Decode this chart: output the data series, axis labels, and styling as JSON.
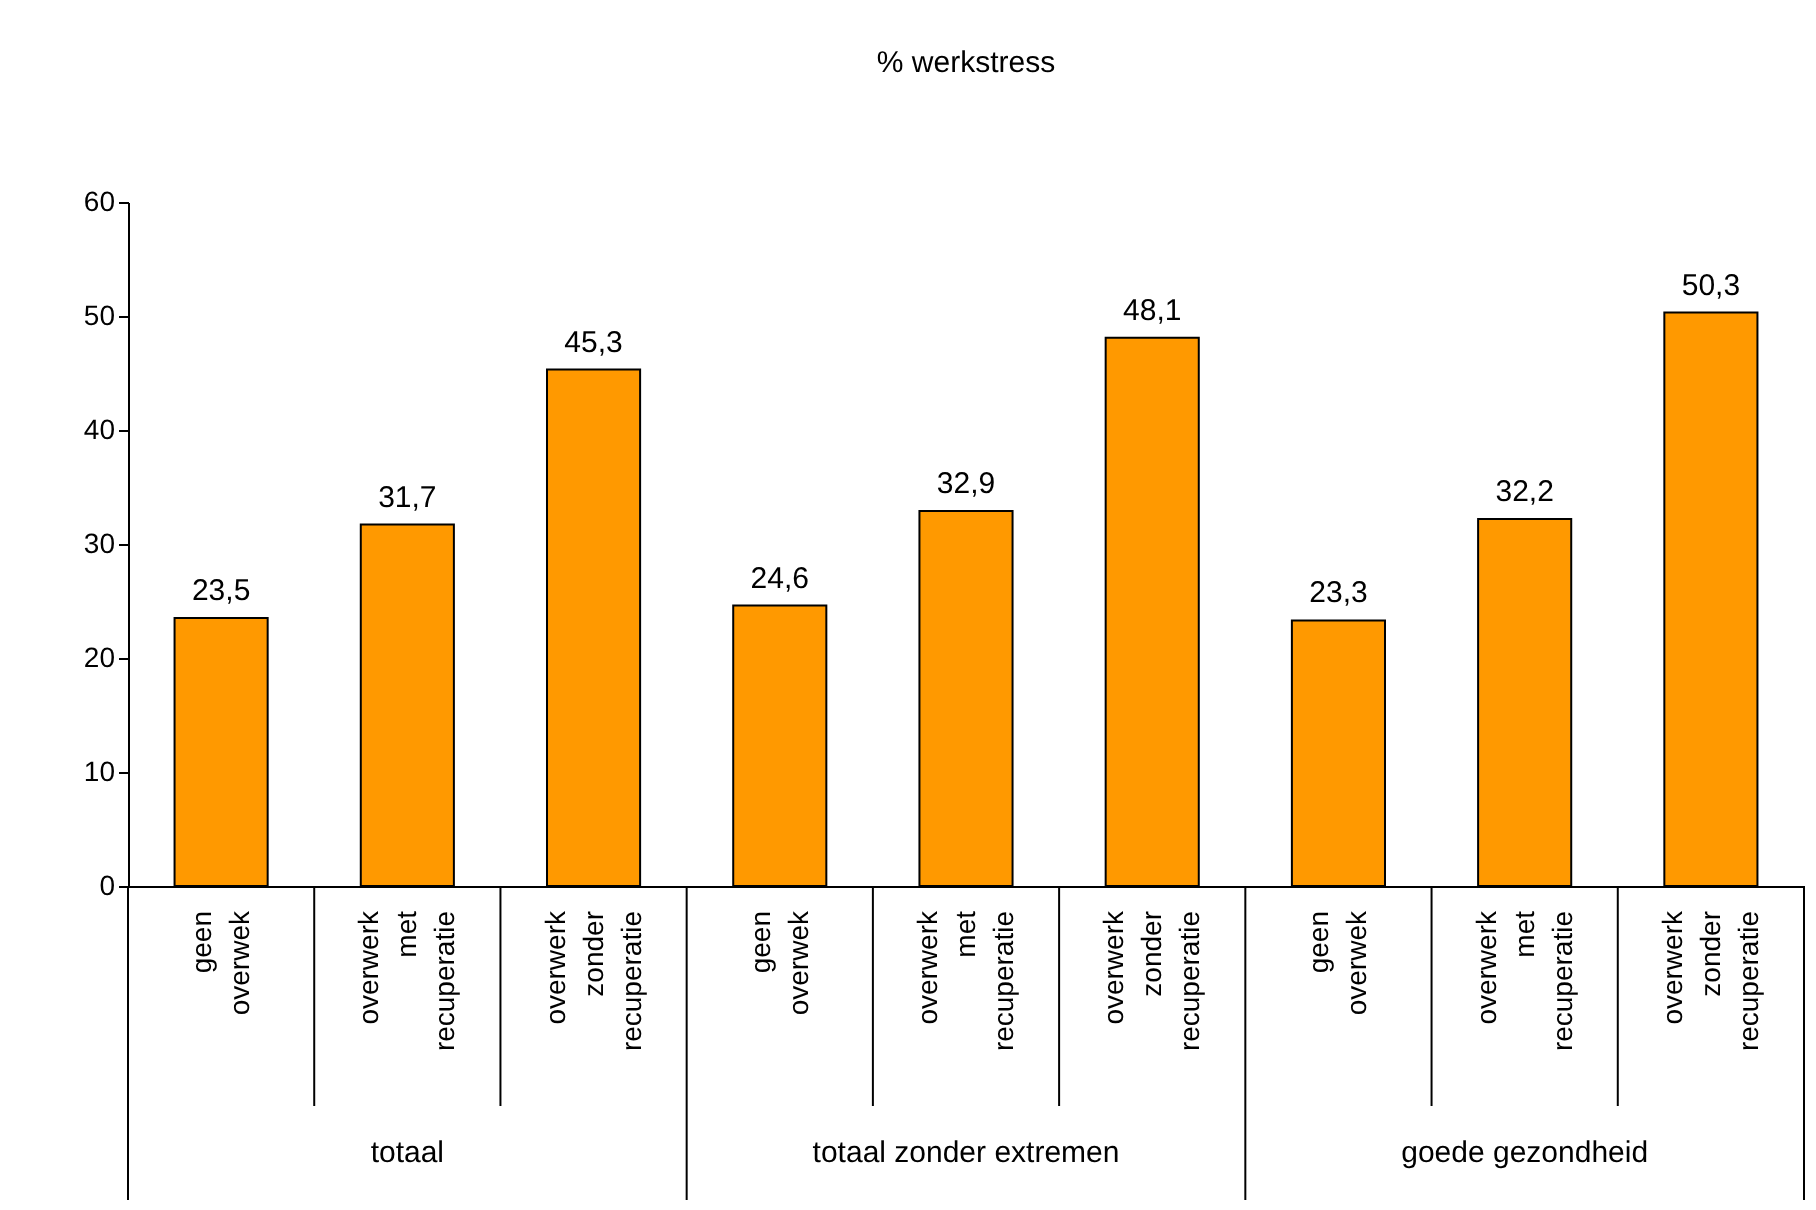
{
  "chart_data": {
    "type": "bar",
    "title": "% werkstress",
    "categories": [
      "geen overwek",
      "overwerk met recuperatie",
      "overwerk zonder recuperatie",
      "geen overwek",
      "overwerk met recuperatie",
      "overwerk zonder recuperatie",
      "geen overwek",
      "overwerk met recuperatie",
      "overwerk zonder recuperatie"
    ],
    "values": [
      23.5,
      31.7,
      45.3,
      24.6,
      32.9,
      48.1,
      23.3,
      32.2,
      50.3
    ],
    "color": "#ff9900",
    "annotations": [
      "totaal",
      "totaal zonder extremen",
      "goede gezondheid"
    ],
    "ylim": [
      0,
      60
    ],
    "yticks": [
      0,
      10,
      20,
      30,
      40,
      50,
      60
    ],
    "value_labels": [
      "23,5",
      "31,7",
      "45,3",
      "24,6",
      "32,9",
      "48,1",
      "23,3",
      "32,2",
      "50,3"
    ],
    "grid": false
  }
}
